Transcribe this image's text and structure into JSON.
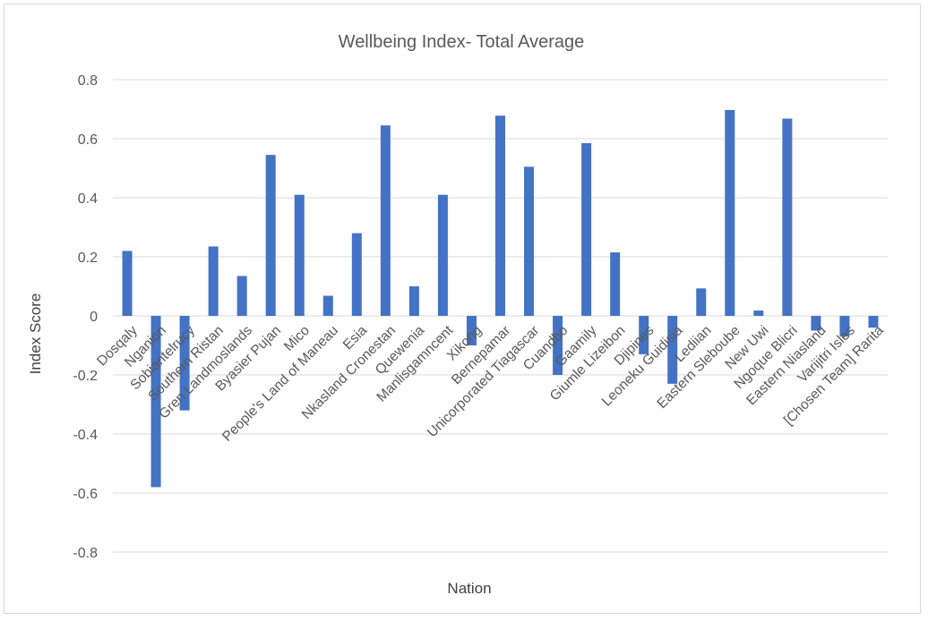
{
  "chart_data": {
    "type": "bar",
    "title": "Wellbeing Index- Total Average",
    "xlabel": "Nation",
    "ylabel": "Index Score",
    "ylim": [
      -0.8,
      0.8
    ],
    "yticks": [
      "0.8",
      "0.6",
      "0.4",
      "0.2",
      "0",
      "-0.2",
      "-0.4",
      "-0.6",
      "-0.8"
    ],
    "grid": true,
    "legend": "none",
    "bar_color": "#4472c4",
    "categories": [
      "Dosqaly",
      "Nganion",
      "Sobiantelrucy",
      "Southern Ristan",
      "Gren Landmoslands",
      "Byasier Pujan",
      "Mico",
      "People's Land of Maneau",
      "Esia",
      "Nkasland Cronestan",
      "Quewenia",
      "Manlisgamncent",
      "Xikong",
      "Bernepamar",
      "Unicorporated Tiagascar",
      "Cuandbo",
      "Gaamily",
      "Giumle Lizeibon",
      "Djipines",
      "Leoneku Guidisia",
      "Lediian",
      "Eastern Sleboube",
      "New Uwi",
      "Ngoque Blicri",
      "Eastern Niasland",
      "Varijitri Isles",
      "[Chosen Team] Rarita"
    ],
    "values": [
      0.22,
      -0.58,
      -0.32,
      0.235,
      0.135,
      0.545,
      0.41,
      0.068,
      0.28,
      0.645,
      0.1,
      0.41,
      -0.1,
      0.678,
      0.505,
      -0.2,
      0.585,
      0.215,
      -0.13,
      -0.23,
      0.093,
      0.697,
      0.018,
      0.668,
      -0.05,
      -0.07,
      -0.04
    ]
  }
}
